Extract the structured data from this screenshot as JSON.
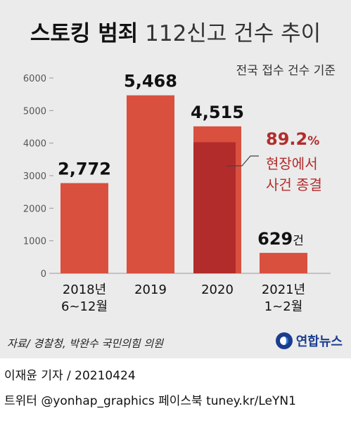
{
  "title": {
    "bold": "스토킹 범죄",
    "light": " 112신고 건수 추이"
  },
  "subtitle": "전국 접수 건수 기준",
  "chart_data": {
    "type": "bar",
    "categories": [
      [
        "2018년",
        "6~12월"
      ],
      [
        "2019"
      ],
      [
        "2020"
      ],
      [
        "2021년",
        "1~2월"
      ]
    ],
    "values": [
      2772,
      5468,
      4515,
      629
    ],
    "value_labels": [
      "2,772",
      "5,468",
      "4,515",
      "629"
    ],
    "value_suffix_last": "건",
    "ylim": [
      0,
      6000
    ],
    "yticks": [
      0,
      1000,
      2000,
      3000,
      4000,
      5000,
      6000
    ],
    "ytick_labels": [
      "0",
      "1000",
      "2000",
      "3000",
      "4000",
      "5000",
      "6000"
    ],
    "overlay": {
      "category_index": 2,
      "fraction": 0.892
    },
    "annotation": {
      "percent": "89.2",
      "percent_sign": "%",
      "line1": "현장에서",
      "line2": "사건 종결"
    },
    "colors": {
      "bar": "#d9503f",
      "overlay": "#b32c2c",
      "annotation_text": "#b32c2c",
      "axis": "#999999"
    }
  },
  "source": "자료/ 경찰청, 박완수 국민의힘 의원",
  "logo": "연합뉴스",
  "footer": {
    "line1": "이재윤 기자 / 20210424",
    "line2": "트위터 @yonhap_graphics  페이스북 tuney.kr/LeYN1"
  }
}
